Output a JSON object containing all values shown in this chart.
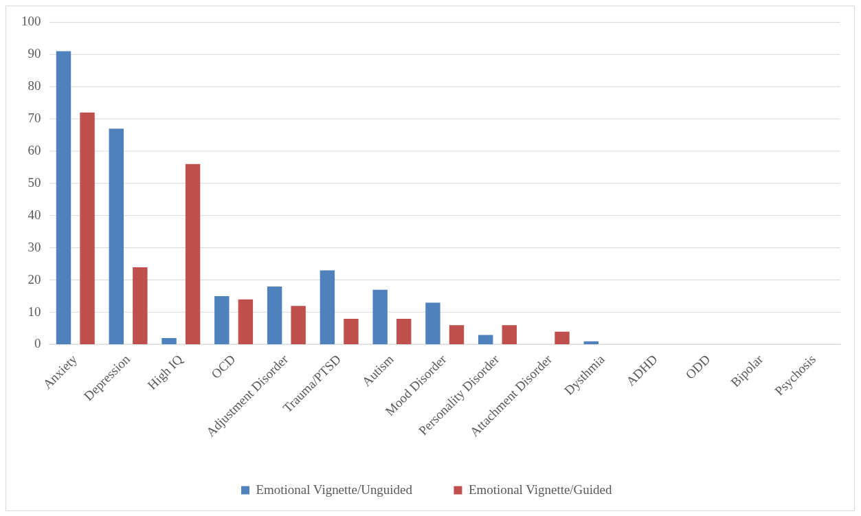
{
  "chart_data": {
    "type": "bar",
    "categories": [
      "Anxiety",
      "Depression",
      "High IQ",
      "OCD",
      "Adjustment Disorder",
      "Trauma/PTSD",
      "Autism",
      "Mood Disorder",
      "Personality Disorder",
      "Attachment Disorder",
      "Dysthmia",
      "ADHD",
      "ODD",
      "Bipolar",
      "Psychosis"
    ],
    "series": [
      {
        "name": "Emotional Vignette/Unguided",
        "color": "#4f81bd",
        "values": [
          91,
          67,
          2,
          15,
          18,
          23,
          17,
          13,
          3,
          0,
          1,
          0,
          0,
          0,
          0
        ]
      },
      {
        "name": "Emotional Vignette/Guided",
        "color": "#c0504d",
        "values": [
          72,
          24,
          56,
          14,
          12,
          8,
          8,
          6,
          6,
          4,
          0,
          0,
          0,
          0,
          0
        ]
      }
    ],
    "ylim": [
      0,
      100
    ],
    "yticks": [
      0,
      10,
      20,
      30,
      40,
      50,
      60,
      70,
      80,
      90,
      100
    ],
    "grid": "y",
    "legend": "bottom"
  }
}
